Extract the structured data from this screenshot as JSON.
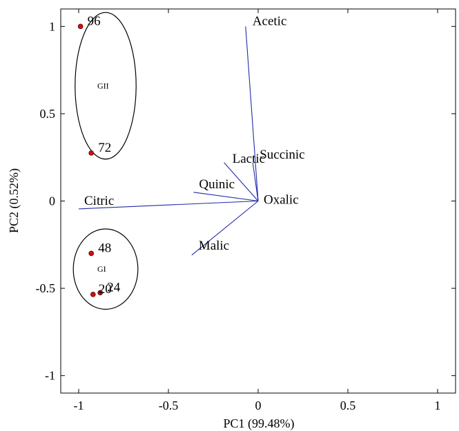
{
  "chart_data": {
    "type": "scatter",
    "subtype": "biplot",
    "title": "",
    "xlabel": "PC1 (99.48%)",
    "ylabel": "PC2 (0.52%)",
    "xlim": [
      -1.1,
      1.1
    ],
    "ylim": [
      -1.1,
      1.1
    ],
    "xticks": [
      {
        "value": -1,
        "label": "-1"
      },
      {
        "value": -0.5,
        "label": "-0.5"
      },
      {
        "value": 0,
        "label": "0"
      },
      {
        "value": 0.5,
        "label": "0.5"
      },
      {
        "value": 1,
        "label": "1"
      }
    ],
    "yticks": [
      {
        "value": -1,
        "label": "-1"
      },
      {
        "value": -0.5,
        "label": "-0.5"
      },
      {
        "value": 0,
        "label": "0"
      },
      {
        "value": 0.5,
        "label": "0.5"
      },
      {
        "value": 1,
        "label": "1"
      }
    ],
    "grid": false,
    "vectors": [
      {
        "name": "Acetic",
        "x": -0.07,
        "y": 1.0
      },
      {
        "name": "Succinic",
        "x": -0.03,
        "y": 0.22
      },
      {
        "name": "Lactic",
        "x": -0.19,
        "y": 0.22
      },
      {
        "name": "Quinic",
        "x": -0.36,
        "y": 0.05
      },
      {
        "name": "Oxalic",
        "x": 0.0,
        "y": 0.0
      },
      {
        "name": "Citric",
        "x": -1.0,
        "y": -0.045
      },
      {
        "name": "Malic",
        "x": -0.37,
        "y": -0.31
      }
    ],
    "points": [
      {
        "label": "96",
        "x": -0.99,
        "y": 1.0
      },
      {
        "label": "72",
        "x": -0.93,
        "y": 0.275
      },
      {
        "label": "48",
        "x": -0.93,
        "y": -0.3
      },
      {
        "label": "24",
        "x": -0.88,
        "y": -0.525
      },
      {
        "label": "20",
        "x": -0.92,
        "y": -0.535
      }
    ],
    "groups": [
      {
        "label": "GII",
        "cx": -0.85,
        "cy": 0.66,
        "rx": 0.17,
        "ry": 0.42
      },
      {
        "label": "GI",
        "cx": -0.85,
        "cy": -0.39,
        "rx": 0.18,
        "ry": 0.23
      }
    ],
    "colors": {
      "vector": "#1f2aa8",
      "point": "#cc1111",
      "point_edge": "#5a0000"
    }
  }
}
